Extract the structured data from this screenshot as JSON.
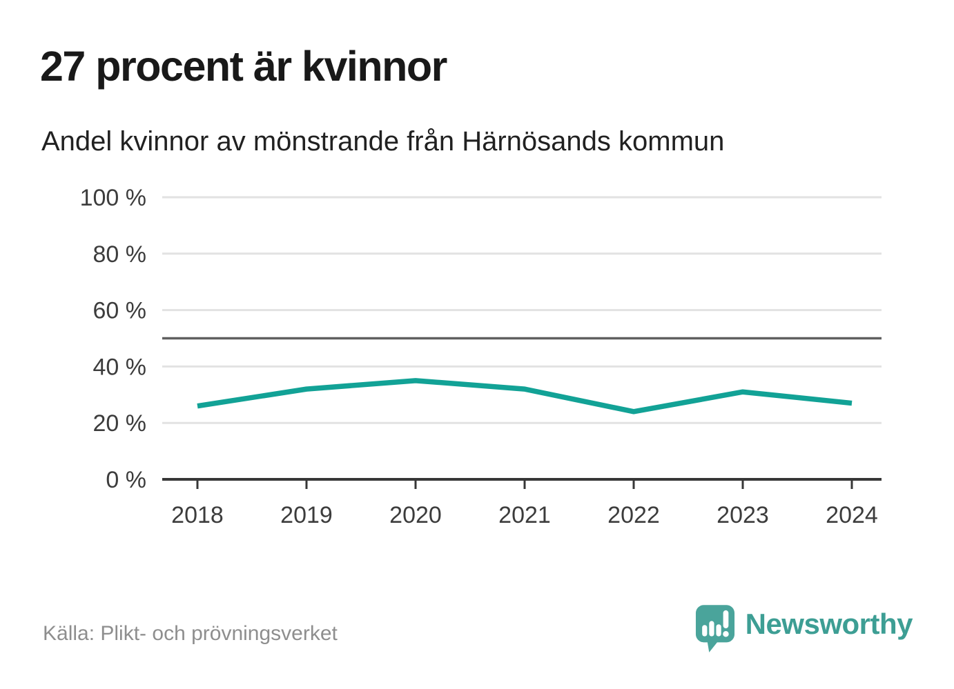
{
  "chart_data": {
    "type": "line",
    "title": "27 procent är kvinnor",
    "subtitle": "Andel kvinnor av mönstrande från Härnösands kommun",
    "x": [
      2018,
      2019,
      2020,
      2021,
      2022,
      2023,
      2024
    ],
    "series": [
      {
        "name": "Andel kvinnor av mönstrande",
        "values": [
          26,
          32,
          35,
          32,
          24,
          31,
          27
        ]
      }
    ],
    "unit": "%",
    "ylim": [
      0,
      100
    ],
    "yticks": [
      0,
      20,
      40,
      60,
      80,
      100
    ],
    "ytick_labels": [
      "0 %",
      "20 %",
      "40 %",
      "60 %",
      "80 %",
      "100 %"
    ],
    "xtick_labels": [
      "2018",
      "2019",
      "2020",
      "2021",
      "2022",
      "2023",
      "2024"
    ],
    "reference_line": {
      "value": 50
    },
    "grid": true,
    "legend": "none",
    "line_color": "#12a296"
  },
  "footer": {
    "source": "Källa: Plikt- och prövningsverket",
    "brand": "Newsworthy"
  },
  "icons": {
    "brand_icon": "speech-bubble-bar-chart-icon"
  },
  "colors": {
    "accent_teal": "#12a296",
    "brand_teal": "#4aa49b",
    "brand_text_teal": "#3d9e94",
    "grid": "#e2e2e2",
    "reference_line": "#606060",
    "axis": "#373737",
    "axis_text": "#3c3c3c",
    "title_text": "#191919",
    "source_text": "#8e8e8e"
  }
}
